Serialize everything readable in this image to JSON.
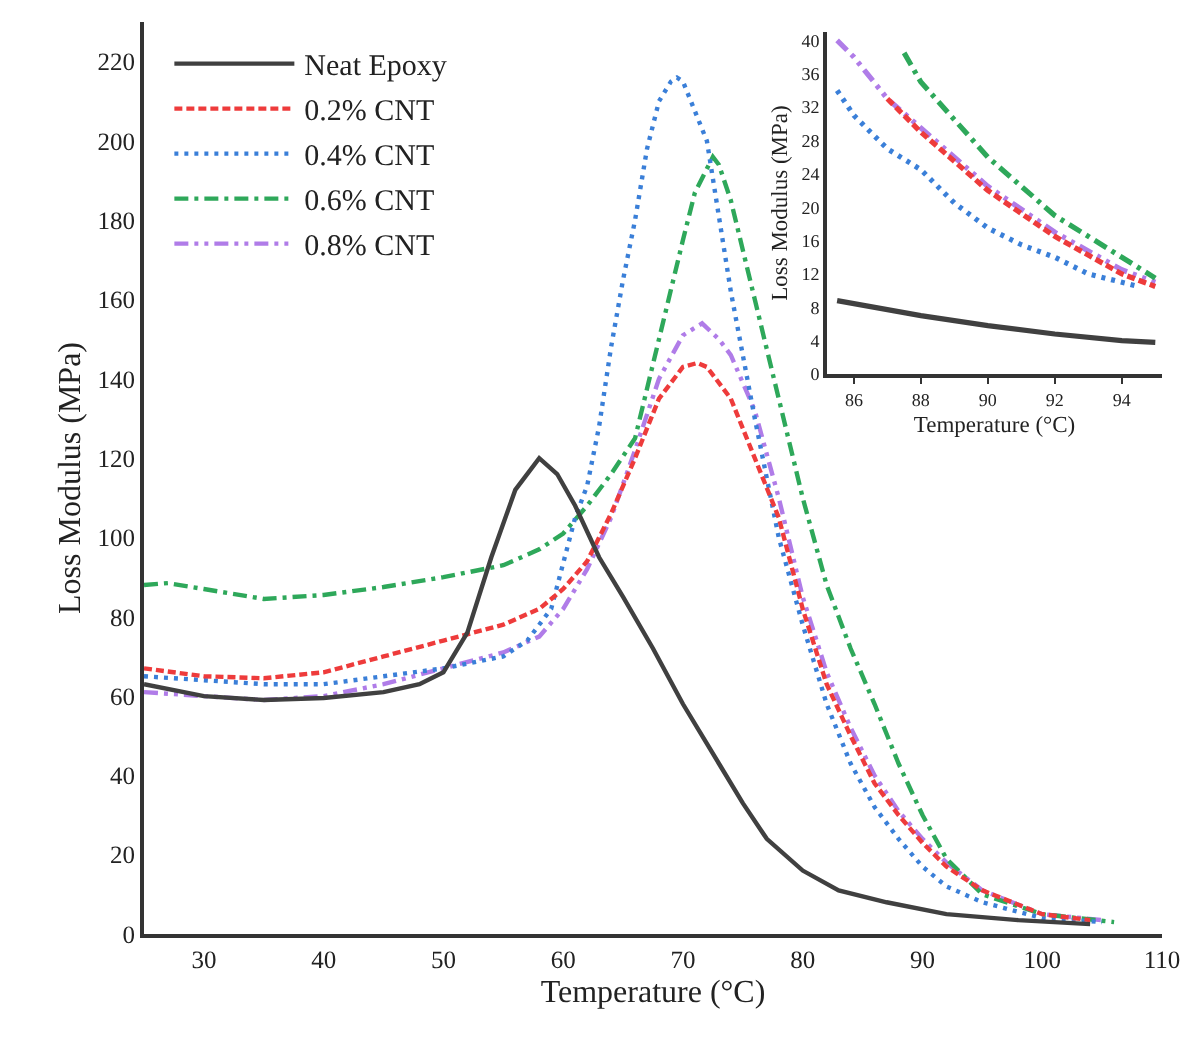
{
  "chart_data": [
    {
      "type": "line",
      "xlabel": "Temperature (°C)",
      "ylabel": "Loss Modulus (MPa)",
      "xlim": [
        25,
        110
      ],
      "xticks": [
        30,
        40,
        50,
        60,
        70,
        80,
        90,
        100,
        110
      ],
      "ylim": [
        0,
        230
      ],
      "yticks": [
        0,
        20,
        40,
        60,
        80,
        100,
        120,
        140,
        160,
        180,
        200,
        220
      ],
      "legend": "top left",
      "marker": "none",
      "series": [
        {
          "name": "Neat Epoxy",
          "color": "#404040",
          "line_style": "solid",
          "x": [
            25,
            30,
            35,
            40,
            45,
            48,
            50,
            52,
            54,
            56,
            58,
            59.5,
            61,
            63,
            65,
            67.5,
            70,
            73,
            75,
            77,
            80,
            83,
            87,
            92,
            98,
            104
          ],
          "values": [
            63,
            60,
            59,
            59.5,
            61,
            63,
            66,
            76,
            95,
            112,
            120,
            116,
            108,
            95,
            85,
            72,
            58,
            43,
            33,
            24,
            16,
            11,
            8,
            5,
            3.5,
            2.5
          ]
        },
        {
          "name": "0.2% CNT",
          "color": "#ee3b3b",
          "line_style": "dashed",
          "x": [
            25,
            30,
            35,
            40,
            45,
            50,
            55,
            58,
            60,
            62,
            64,
            66,
            68,
            70,
            71.2,
            72,
            74,
            76,
            78,
            80,
            82,
            84,
            86,
            88,
            90,
            92,
            95,
            100,
            104
          ],
          "values": [
            67,
            65,
            64.5,
            66,
            70,
            74,
            78,
            82,
            87,
            94,
            106,
            120,
            135,
            143,
            144,
            143,
            135,
            120,
            105,
            82,
            63,
            50,
            38,
            30,
            23,
            17,
            11,
            5,
            3.5
          ]
        },
        {
          "name": "0.4% CNT",
          "color": "#3a7fd8",
          "line_style": "dotted",
          "x": [
            25,
            30,
            35,
            40,
            45,
            50,
            55,
            57,
            59,
            61,
            62,
            63,
            64,
            65,
            66,
            67,
            68,
            69,
            69.5,
            70,
            72,
            74,
            76,
            78,
            80,
            82,
            84,
            86,
            88,
            90,
            92,
            95,
            100,
            105
          ],
          "values": [
            65,
            64,
            63,
            63,
            65,
            67,
            70,
            74,
            82,
            105,
            113,
            128,
            148,
            165,
            180,
            198,
            210,
            215,
            216,
            215,
            200,
            162,
            130,
            100,
            78,
            58,
            43,
            32,
            24,
            17,
            12,
            8,
            4,
            3
          ]
        },
        {
          "name": "0.6% CNT",
          "color": "#2ea85a",
          "line_style": "dashdot",
          "x": [
            25,
            27,
            30,
            35,
            40,
            45,
            50,
            55,
            58,
            60,
            62,
            64,
            66,
            68,
            70,
            71,
            72.5,
            73,
            74,
            76,
            78,
            80,
            82,
            84,
            86,
            88,
            90,
            92,
            95,
            100,
            106
          ],
          "values": [
            88,
            88.5,
            87,
            84.5,
            85.5,
            87.5,
            90,
            93,
            97,
            101,
            108,
            116,
            125,
            150,
            175,
            187,
            196,
            194,
            185,
            160,
            135,
            110,
            88,
            72,
            58,
            43,
            30,
            19,
            10,
            5,
            3
          ]
        },
        {
          "name": "0.8% CNT",
          "color": "#b07ce8",
          "line_style": "dashdotdot",
          "x": [
            25,
            30,
            35,
            40,
            45,
            50,
            55,
            58,
            60,
            62,
            64,
            66,
            68,
            70,
            71.6,
            73,
            74,
            76,
            78,
            80,
            82,
            84,
            86,
            88,
            90,
            92,
            95,
            100,
            105
          ],
          "values": [
            61,
            60,
            59,
            60,
            63,
            67,
            71,
            75,
            82,
            92,
            105,
            122,
            140,
            151,
            154,
            150,
            146,
            132,
            110,
            85,
            66,
            52,
            40,
            31,
            24,
            18,
            11,
            5,
            3.5
          ]
        }
      ]
    },
    {
      "type": "line",
      "xlabel": "Temperature (°C)",
      "ylabel": "Loss Modulus (MPa)",
      "xlim": [
        85.2,
        95.2
      ],
      "xticks": [
        86,
        88,
        90,
        92,
        94
      ],
      "ylim": [
        0,
        41
      ],
      "yticks": [
        0,
        4,
        8,
        12,
        16,
        20,
        24,
        28,
        32,
        36,
        40
      ],
      "marker": "none",
      "series": [
        {
          "color": "#404040",
          "line_style": "solid",
          "x": [
            85.5,
            88,
            90,
            92,
            94,
            95
          ],
          "values": [
            8.8,
            7,
            5.8,
            4.8,
            4,
            3.8
          ]
        },
        {
          "color": "#ee3b3b",
          "line_style": "dashed",
          "x": [
            87,
            88,
            90,
            92,
            94,
            95
          ],
          "values": [
            33,
            29,
            22,
            16.5,
            12,
            10.5
          ]
        },
        {
          "color": "#3a7fd8",
          "line_style": "dotted",
          "x": [
            85.5,
            86,
            87,
            88,
            89,
            90,
            91,
            92,
            93,
            94,
            94.5
          ],
          "values": [
            34,
            31,
            27,
            24.5,
            20.5,
            17.5,
            15.5,
            14,
            12,
            11,
            10.5
          ]
        },
        {
          "color": "#2ea85a",
          "line_style": "dashdot",
          "x": [
            87.5,
            88,
            90,
            92,
            94,
            95
          ],
          "values": [
            38.5,
            35,
            26,
            19,
            14,
            11.5
          ]
        },
        {
          "color": "#b07ce8",
          "line_style": "dashdotdot",
          "x": [
            85.5,
            86,
            87,
            88,
            90,
            92,
            94,
            95
          ],
          "values": [
            40,
            38,
            33,
            29.5,
            22.5,
            17,
            12.5,
            11
          ]
        }
      ]
    }
  ]
}
